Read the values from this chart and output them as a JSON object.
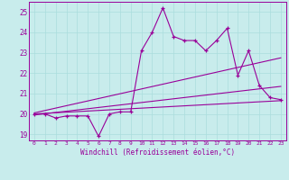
{
  "xlabel": "Windchill (Refroidissement éolien,°C)",
  "ylabel": "",
  "bg_color": "#c8ecec",
  "line_color": "#990099",
  "grid_color": "#aadddd",
  "xlim": [
    -0.5,
    23.5
  ],
  "ylim": [
    18.7,
    25.5
  ],
  "yticks": [
    19,
    20,
    21,
    22,
    23,
    24,
    25
  ],
  "xticks": [
    0,
    1,
    2,
    3,
    4,
    5,
    6,
    7,
    8,
    9,
    10,
    11,
    12,
    13,
    14,
    15,
    16,
    17,
    18,
    19,
    20,
    21,
    22,
    23
  ],
  "series1_x": [
    0,
    1,
    2,
    3,
    4,
    5,
    6,
    7,
    8,
    9,
    10,
    11,
    12,
    13,
    14,
    15,
    16,
    17,
    18,
    19,
    20,
    21,
    22,
    23
  ],
  "series1_y": [
    20.0,
    20.0,
    19.8,
    19.9,
    19.9,
    19.9,
    18.9,
    20.0,
    20.1,
    20.1,
    23.1,
    24.0,
    25.2,
    23.8,
    23.6,
    23.6,
    23.1,
    23.6,
    24.2,
    21.9,
    23.1,
    21.4,
    20.8,
    20.7
  ],
  "series2_x": [
    0,
    23
  ],
  "series2_y": [
    19.95,
    21.35
  ],
  "series3_x": [
    0,
    23
  ],
  "series3_y": [
    20.05,
    22.75
  ],
  "series4_x": [
    0,
    23
  ],
  "series4_y": [
    20.0,
    20.65
  ]
}
